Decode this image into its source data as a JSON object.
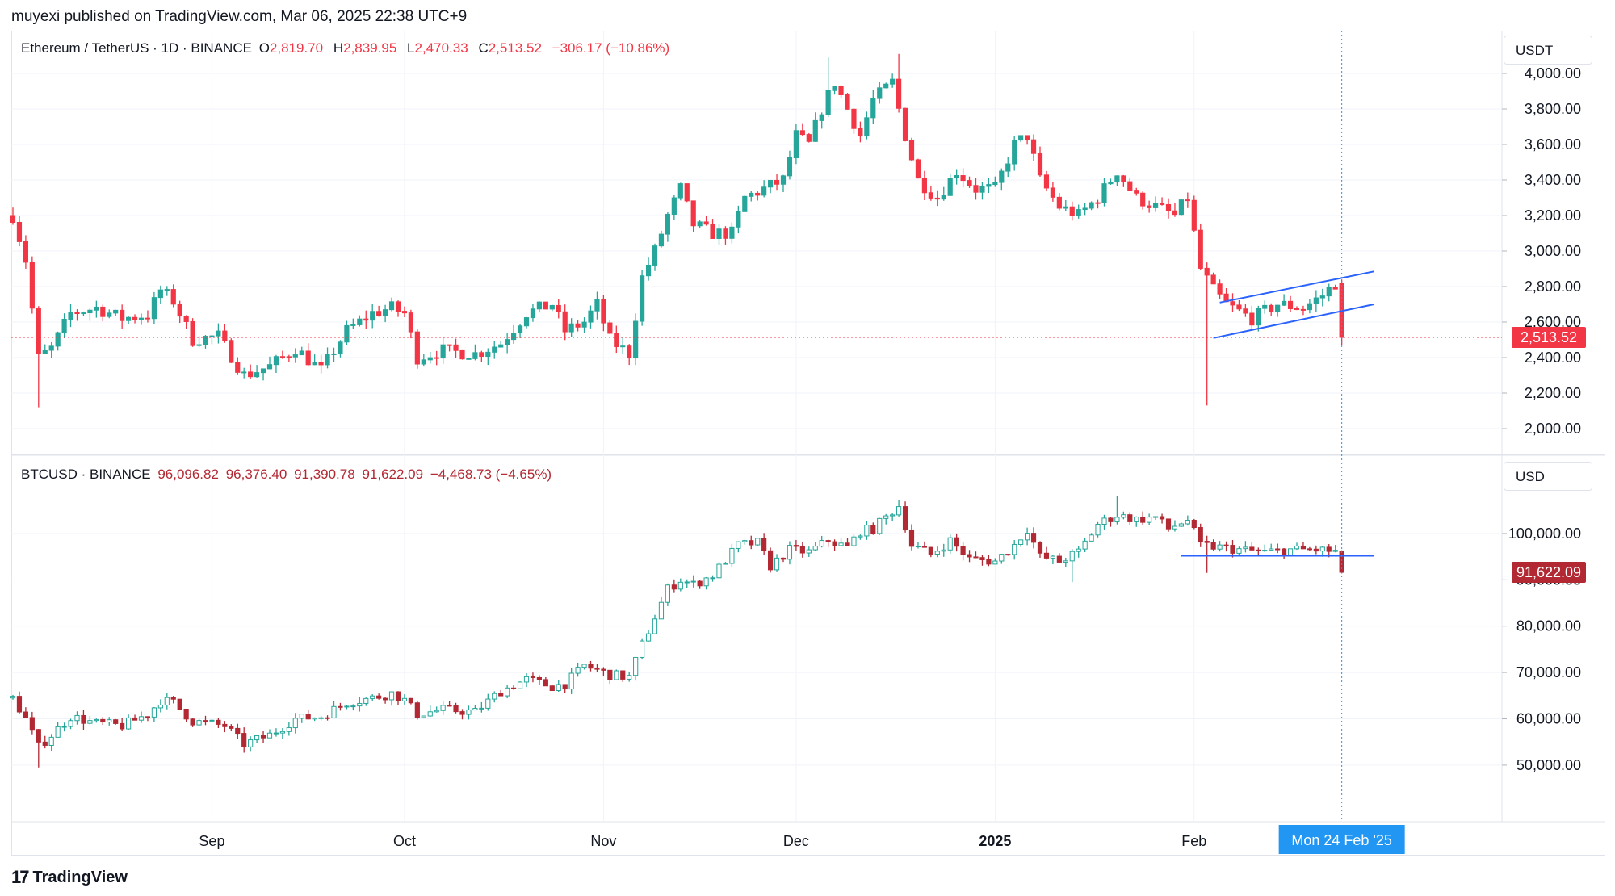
{
  "publisher": "muyexi published on TradingView.com, Mar 06, 2025 22:38 UTC+9",
  "footer": {
    "brand": "TradingView",
    "logo_icon": "tradingview-logo-icon"
  },
  "colors": {
    "up": "#26a69a",
    "down_eth": "#f23645",
    "down_btc": "#b22833",
    "channel": "#2962ff",
    "cursor": "#2196f3"
  },
  "crosshair_label": "Mon 24 Feb '25",
  "x_axis": {
    "ticks": [
      {
        "label": "Sep",
        "date": "2024-09-01",
        "bold": false
      },
      {
        "label": "Oct",
        "date": "2024-10-01",
        "bold": false
      },
      {
        "label": "Nov",
        "date": "2024-11-01",
        "bold": false
      },
      {
        "label": "Dec",
        "date": "2024-12-01",
        "bold": false
      },
      {
        "label": "2025",
        "date": "2025-01-01",
        "bold": true
      },
      {
        "label": "Feb",
        "date": "2025-02-01",
        "bold": false
      }
    ]
  },
  "chart_data": [
    {
      "type": "candlestick",
      "symbol": "Ethereum / TetherUS · 1D · BINANCE",
      "ohlc_label": {
        "O": "2,819.70",
        "H": "2,839.95",
        "L": "2,470.33",
        "C": "2,513.52",
        "change": "−306.17 (−10.86%)"
      },
      "unit": "USDT",
      "last_price": "2,513.52",
      "ylim": [
        1950,
        4150
      ],
      "y_ticks": [
        "2,000.00",
        "2,200.00",
        "2,400.00",
        "2,600.00",
        "2,800.00",
        "3,000.00",
        "3,200.00",
        "3,400.00",
        "3,600.00",
        "3,800.00",
        "4,000.00"
      ],
      "x_range": [
        "2024-08-01",
        "2025-02-24"
      ],
      "anchors": [
        [
          "2024-08-01",
          3200
        ],
        [
          "2024-08-03",
          2950
        ],
        [
          "2024-08-05",
          2400
        ],
        [
          "2024-08-07",
          2450
        ],
        [
          "2024-08-10",
          2650
        ],
        [
          "2024-08-14",
          2680
        ],
        [
          "2024-08-18",
          2620
        ],
        [
          "2024-08-22",
          2640
        ],
        [
          "2024-08-24",
          2780
        ],
        [
          "2024-08-26",
          2720
        ],
        [
          "2024-08-29",
          2500
        ],
        [
          "2024-09-02",
          2520
        ],
        [
          "2024-09-06",
          2300
        ],
        [
          "2024-09-10",
          2350
        ],
        [
          "2024-09-14",
          2450
        ],
        [
          "2024-09-18",
          2330
        ],
        [
          "2024-09-22",
          2550
        ],
        [
          "2024-09-26",
          2650
        ],
        [
          "2024-09-29",
          2680
        ],
        [
          "2024-10-01",
          2650
        ],
        [
          "2024-10-03",
          2400
        ],
        [
          "2024-10-07",
          2440
        ],
        [
          "2024-10-12",
          2420
        ],
        [
          "2024-10-16",
          2480
        ],
        [
          "2024-10-20",
          2650
        ],
        [
          "2024-10-24",
          2700
        ],
        [
          "2024-10-26",
          2550
        ],
        [
          "2024-10-29",
          2600
        ],
        [
          "2024-10-31",
          2700
        ],
        [
          "2024-11-02",
          2500
        ],
        [
          "2024-11-05",
          2420
        ],
        [
          "2024-11-07",
          2850
        ],
        [
          "2024-11-09",
          3000
        ],
        [
          "2024-11-11",
          3200
        ],
        [
          "2024-11-13",
          3350
        ],
        [
          "2024-11-15",
          3150
        ],
        [
          "2024-11-18",
          3100
        ],
        [
          "2024-11-21",
          3100
        ],
        [
          "2024-11-23",
          3300
        ],
        [
          "2024-11-26",
          3350
        ],
        [
          "2024-11-29",
          3400
        ],
        [
          "2024-12-01",
          3650
        ],
        [
          "2024-12-03",
          3600
        ],
        [
          "2024-12-05",
          3800
        ],
        [
          "2024-12-07",
          3950
        ],
        [
          "2024-12-09",
          3800
        ],
        [
          "2024-12-11",
          3650
        ],
        [
          "2024-12-13",
          3850
        ],
        [
          "2024-12-16",
          3950
        ],
        [
          "2024-12-18",
          3650
        ],
        [
          "2024-12-20",
          3400
        ],
        [
          "2024-12-23",
          3300
        ],
        [
          "2024-12-26",
          3450
        ],
        [
          "2024-12-29",
          3350
        ],
        [
          "2025-01-01",
          3350
        ],
        [
          "2025-01-04",
          3600
        ],
        [
          "2025-01-06",
          3650
        ],
        [
          "2025-01-08",
          3400
        ],
        [
          "2025-01-11",
          3250
        ],
        [
          "2025-01-14",
          3200
        ],
        [
          "2025-01-17",
          3300
        ],
        [
          "2025-01-20",
          3450
        ],
        [
          "2025-01-23",
          3300
        ],
        [
          "2025-01-26",
          3250
        ],
        [
          "2025-01-29",
          3200
        ],
        [
          "2025-01-31",
          3300
        ],
        [
          "2025-02-02",
          2900
        ],
        [
          "2025-02-04",
          2780
        ],
        [
          "2025-02-06",
          2700
        ],
        [
          "2025-02-10",
          2620
        ],
        [
          "2025-02-14",
          2700
        ],
        [
          "2025-02-18",
          2680
        ],
        [
          "2025-02-21",
          2750
        ],
        [
          "2025-02-23",
          2820
        ],
        [
          "2025-02-24",
          2513
        ]
      ],
      "wick_spikes": [
        [
          "2024-08-05",
          2120
        ],
        [
          "2025-02-03",
          2130
        ],
        [
          "2024-12-17",
          4110
        ],
        [
          "2024-12-06",
          4090
        ]
      ],
      "annotation": "rising-channel",
      "channel": {
        "upper": [
          [
            "2025-02-05",
            2710
          ],
          [
            "2025-03-01",
            2885
          ]
        ],
        "lower": [
          [
            "2025-02-04",
            2510
          ],
          [
            "2025-03-01",
            2700
          ]
        ]
      }
    },
    {
      "type": "candlestick",
      "symbol": "BTCUSD · BINANCE",
      "ohlc_label": {
        "O": "96,096.82",
        "H": "96,376.40",
        "L": "91,390.78",
        "C": "91,622.09",
        "change": "−4,468.73 (−4.65%)"
      },
      "unit": "USD",
      "last_price": "91,622.09",
      "ylim": [
        46500,
        108000
      ],
      "y_ticks": [
        "50,000.00",
        "60,000.00",
        "70,000.00",
        "80,000.00",
        "90,000.00",
        "100,000.00"
      ],
      "x_range": [
        "2024-08-01",
        "2025-02-24"
      ],
      "anchors": [
        [
          "2024-08-01",
          64500
        ],
        [
          "2024-08-03",
          60000
        ],
        [
          "2024-08-05",
          54000
        ],
        [
          "2024-08-07",
          56500
        ],
        [
          "2024-08-10",
          60500
        ],
        [
          "2024-08-14",
          59000
        ],
        [
          "2024-08-18",
          58500
        ],
        [
          "2024-08-22",
          61000
        ],
        [
          "2024-08-24",
          64000
        ],
        [
          "2024-08-26",
          63500
        ],
        [
          "2024-08-29",
          59500
        ],
        [
          "2024-09-03",
          58500
        ],
        [
          "2024-09-06",
          54500
        ],
        [
          "2024-09-10",
          56500
        ],
        [
          "2024-09-14",
          60000
        ],
        [
          "2024-09-18",
          60500
        ],
        [
          "2024-09-22",
          63500
        ],
        [
          "2024-09-26",
          64500
        ],
        [
          "2024-09-29",
          65500
        ],
        [
          "2024-10-01",
          64000
        ],
        [
          "2024-10-03",
          61000
        ],
        [
          "2024-10-07",
          62000
        ],
        [
          "2024-10-12",
          61500
        ],
        [
          "2024-10-16",
          66000
        ],
        [
          "2024-10-20",
          68500
        ],
        [
          "2024-10-24",
          67000
        ],
        [
          "2024-10-26",
          67500
        ],
        [
          "2024-10-29",
          71500
        ],
        [
          "2024-10-31",
          70500
        ],
        [
          "2024-11-02",
          69500
        ],
        [
          "2024-11-05",
          69000
        ],
        [
          "2024-11-07",
          76000
        ],
        [
          "2024-11-11",
          88000
        ],
        [
          "2024-11-13",
          90000
        ],
        [
          "2024-11-15",
          89000
        ],
        [
          "2024-11-18",
          91000
        ],
        [
          "2024-11-22",
          97500
        ],
        [
          "2024-11-25",
          98000
        ],
        [
          "2024-11-27",
          93000
        ],
        [
          "2024-11-30",
          96500
        ],
        [
          "2024-12-03",
          96000
        ],
        [
          "2024-12-06",
          98500
        ],
        [
          "2024-12-09",
          97000
        ],
        [
          "2024-12-11",
          100500
        ],
        [
          "2024-12-13",
          101000
        ],
        [
          "2024-12-17",
          106000
        ],
        [
          "2024-12-19",
          97500
        ],
        [
          "2024-12-22",
          95500
        ],
        [
          "2024-12-25",
          98500
        ],
        [
          "2024-12-28",
          94500
        ],
        [
          "2025-01-01",
          94000
        ],
        [
          "2025-01-04",
          97500
        ],
        [
          "2025-01-06",
          101000
        ],
        [
          "2025-01-08",
          95000
        ],
        [
          "2025-01-11",
          94000
        ],
        [
          "2025-01-14",
          96000
        ],
        [
          "2025-01-17",
          102000
        ],
        [
          "2025-01-20",
          104000
        ],
        [
          "2025-01-23",
          103000
        ],
        [
          "2025-01-26",
          103500
        ],
        [
          "2025-01-28",
          101000
        ],
        [
          "2025-01-31",
          103000
        ],
        [
          "2025-02-02",
          97500
        ],
        [
          "2025-02-05",
          97000
        ],
        [
          "2025-02-08",
          96500
        ],
        [
          "2025-02-12",
          96000
        ],
        [
          "2025-02-16",
          96500
        ],
        [
          "2025-02-20",
          96500
        ],
        [
          "2025-02-23",
          96096
        ],
        [
          "2025-02-24",
          91622
        ]
      ],
      "wick_spikes": [
        [
          "2025-02-03",
          91500
        ],
        [
          "2024-08-05",
          49500
        ],
        [
          "2025-01-13",
          89500
        ],
        [
          "2025-01-20",
          108000
        ]
      ],
      "annotation": "support-line",
      "support_line": [
        [
          "2025-01-30",
          95200
        ],
        [
          "2025-03-01",
          95200
        ]
      ]
    }
  ]
}
